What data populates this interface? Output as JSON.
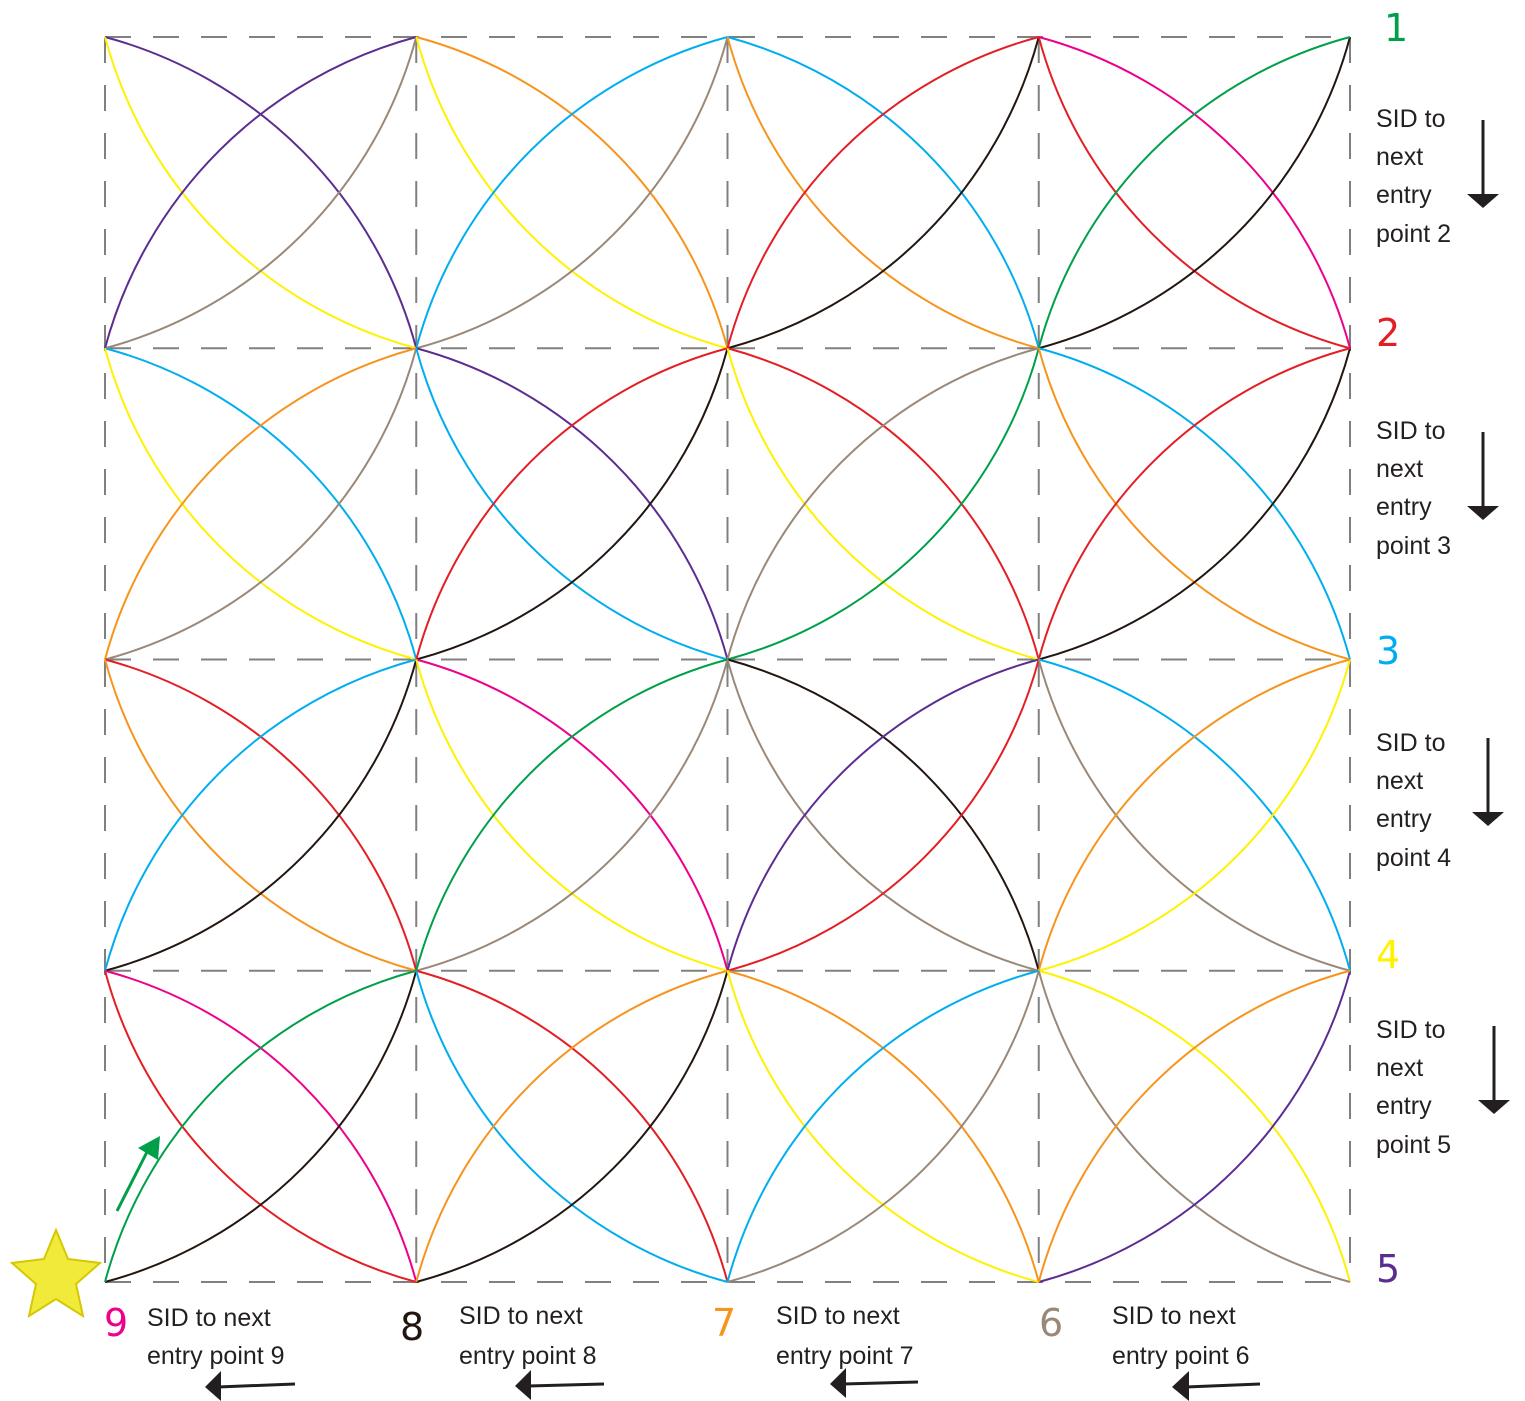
{
  "colors": {
    "green": "#00a04a",
    "red": "#e31e24",
    "cyan": "#00aeef",
    "yellow": "#fff200",
    "purple": "#5c2d91",
    "brown": "#9a8878",
    "black": "#231610",
    "orange": "#f7941d",
    "magenta": "#ec008c",
    "grid": "#808080",
    "text": "#231f20",
    "star": "#f2ea3b"
  },
  "entry_points": [
    {
      "number": "1",
      "color": "green"
    },
    {
      "number": "2",
      "color": "red"
    },
    {
      "number": "3",
      "color": "cyan"
    },
    {
      "number": "4",
      "color": "yellow"
    },
    {
      "number": "5",
      "color": "purple"
    },
    {
      "number": "6",
      "color": "brown"
    },
    {
      "number": "7",
      "color": "orange"
    },
    {
      "number": "8",
      "color": "black"
    },
    {
      "number": "9",
      "color": "magenta"
    }
  ],
  "side_instructions": [
    {
      "lines": [
        "SID to",
        "next",
        "entry",
        "point 2"
      ]
    },
    {
      "lines": [
        "SID to",
        "next",
        "entry",
        "point 3"
      ]
    },
    {
      "lines": [
        "SID to",
        "next",
        "entry",
        "point 4"
      ]
    },
    {
      "lines": [
        "SID to",
        "next",
        "entry",
        "point 5"
      ]
    }
  ],
  "bottom_instructions": [
    {
      "lines": [
        "SID to next",
        "entry point 9"
      ]
    },
    {
      "lines": [
        "SID to next",
        "entry point 8"
      ]
    },
    {
      "lines": [
        "SID to next",
        "entry point 7"
      ]
    },
    {
      "lines": [
        "SID to next",
        "entry point 6"
      ]
    }
  ],
  "arc_grid": {
    "columns": 4,
    "rows": 4,
    "cell_arc_colors": [
      [
        "purple",
        "yellow",
        "brown",
        "purple",
        "orange",
        "yellow",
        "brown",
        "cyan",
        "cyan",
        "orange",
        "black",
        "red",
        "magenta",
        "red",
        "black",
        "green"
      ],
      [
        "cyan",
        "yellow",
        "brown",
        "orange",
        "purple",
        "cyan",
        "black",
        "red",
        "red",
        "yellow",
        "green",
        "brown",
        "cyan",
        "orange",
        "black",
        "red"
      ],
      [
        "red",
        "orange",
        "black",
        "cyan",
        "magenta",
        "yellow",
        "brown",
        "green",
        "black",
        "brown",
        "red",
        "purple",
        "cyan",
        "brown",
        "yellow",
        "orange"
      ],
      [
        "magenta",
        "red",
        "black",
        "green",
        "red",
        "cyan",
        "black",
        "orange",
        "orange",
        "yellow",
        "brown",
        "cyan",
        "yellow",
        "brown",
        "purple",
        "orange"
      ]
    ]
  }
}
